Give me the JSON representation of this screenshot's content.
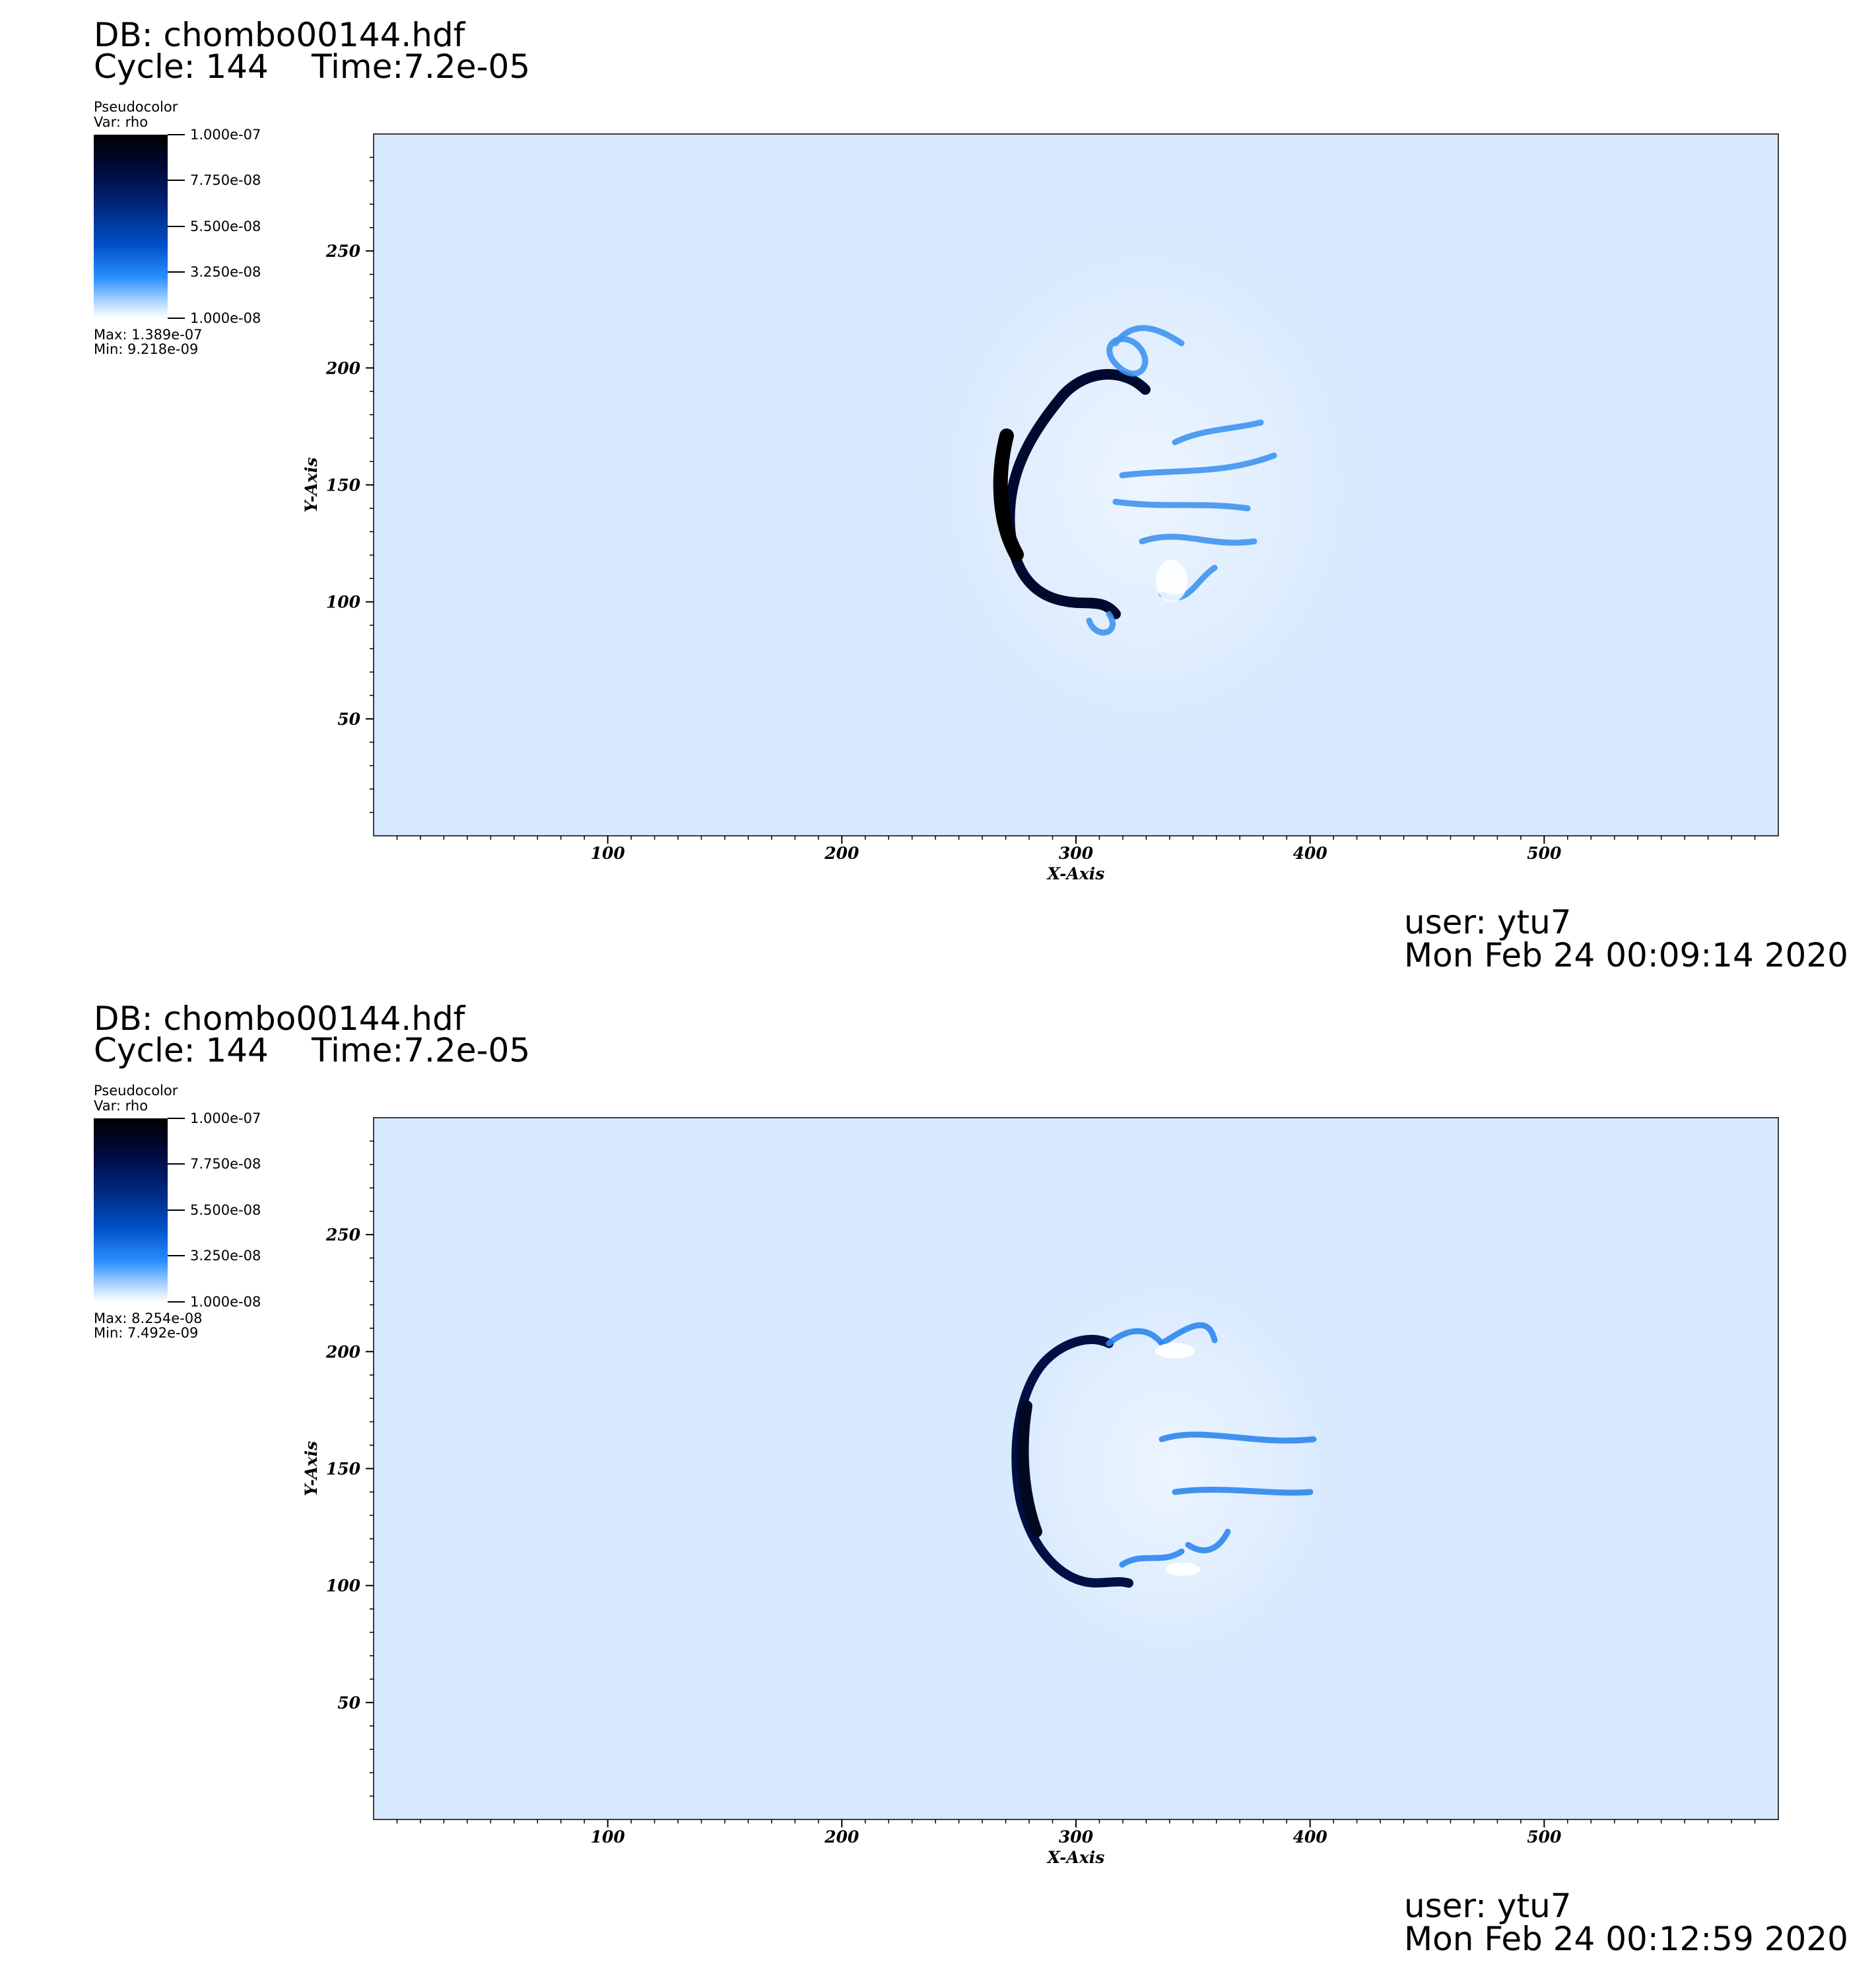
{
  "panels": [
    {
      "db": "DB: chombo00144.hdf",
      "cycle": "Cycle: 144",
      "time": "Time:7.2e-05",
      "legend_title": "Pseudocolor",
      "legend_var": "Var: rho",
      "legend_ticks": [
        "1.000e-07",
        "7.750e-08",
        "5.500e-08",
        "3.250e-08",
        "1.000e-08"
      ],
      "max_label": "Max:  1.389e-07",
      "min_label": "Min:  9.218e-09",
      "user": "user: ytu7",
      "date": "Mon Feb 24 00:09:14 2020"
    },
    {
      "db": "DB: chombo00144.hdf",
      "cycle": "Cycle: 144",
      "time": "Time:7.2e-05",
      "legend_title": "Pseudocolor",
      "legend_var": "Var: rho",
      "legend_ticks": [
        "1.000e-07",
        "7.750e-08",
        "5.500e-08",
        "3.250e-08",
        "1.000e-08"
      ],
      "max_label": "Max:  8.254e-08",
      "min_label": "Min:  7.492e-09",
      "user": "user: ytu7",
      "date": "Mon Feb 24 00:12:59 2020"
    }
  ],
  "chart_data": [
    {
      "type": "heatmap",
      "title": "",
      "xlabel": "X-Axis",
      "ylabel": "Y-Axis",
      "xlim": [
        0,
        600
      ],
      "ylim": [
        0,
        300
      ],
      "x_ticks": [
        "100",
        "200",
        "300",
        "400",
        "500"
      ],
      "y_ticks": [
        "50",
        "100",
        "150",
        "200",
        "250"
      ],
      "colorbar": {
        "var": "rho",
        "min": 1e-08,
        "max": 1e-07
      },
      "data_max": 1.389e-07,
      "data_min": 9.218e-09,
      "background_color": "#d6e8fe"
    },
    {
      "type": "heatmap",
      "title": "",
      "xlabel": "X-Axis",
      "ylabel": "Y-Axis",
      "xlim": [
        0,
        600
      ],
      "ylim": [
        0,
        300
      ],
      "x_ticks": [
        "100",
        "200",
        "300",
        "400",
        "500"
      ],
      "y_ticks": [
        "50",
        "100",
        "150",
        "200",
        "250"
      ],
      "colorbar": {
        "var": "rho",
        "min": 1e-08,
        "max": 1e-07
      },
      "data_max": 8.254e-08,
      "data_min": 7.492e-09,
      "background_color": "#d6e8fe"
    }
  ]
}
